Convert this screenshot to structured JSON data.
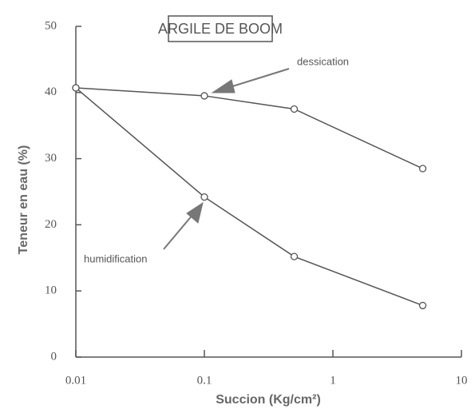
{
  "chart_data": {
    "type": "line",
    "title": "ARGILE DE BOOM",
    "x_label": "Succion (Kg/cm²)",
    "y_label": "Teneur en eau (%)",
    "annotations": [
      "dessication",
      "humidification"
    ],
    "x": [
      0.01,
      0.1,
      0.5,
      5
    ],
    "series": [
      {
        "name": "dessication",
        "color": "#555555",
        "values": [
          40.7,
          39.5,
          37.5,
          28.5
        ]
      },
      {
        "name": "humidification",
        "color": "#555555",
        "values": [
          40.7,
          24.2,
          15.2,
          7.8
        ]
      }
    ],
    "xscale": "log",
    "xlim": [
      0.01,
      10
    ],
    "xticks": [
      0.01,
      0.1,
      1,
      10
    ],
    "ylim": [
      0,
      50
    ],
    "yticks": [
      0,
      10,
      20,
      30,
      40,
      50
    ],
    "grid": false
  }
}
